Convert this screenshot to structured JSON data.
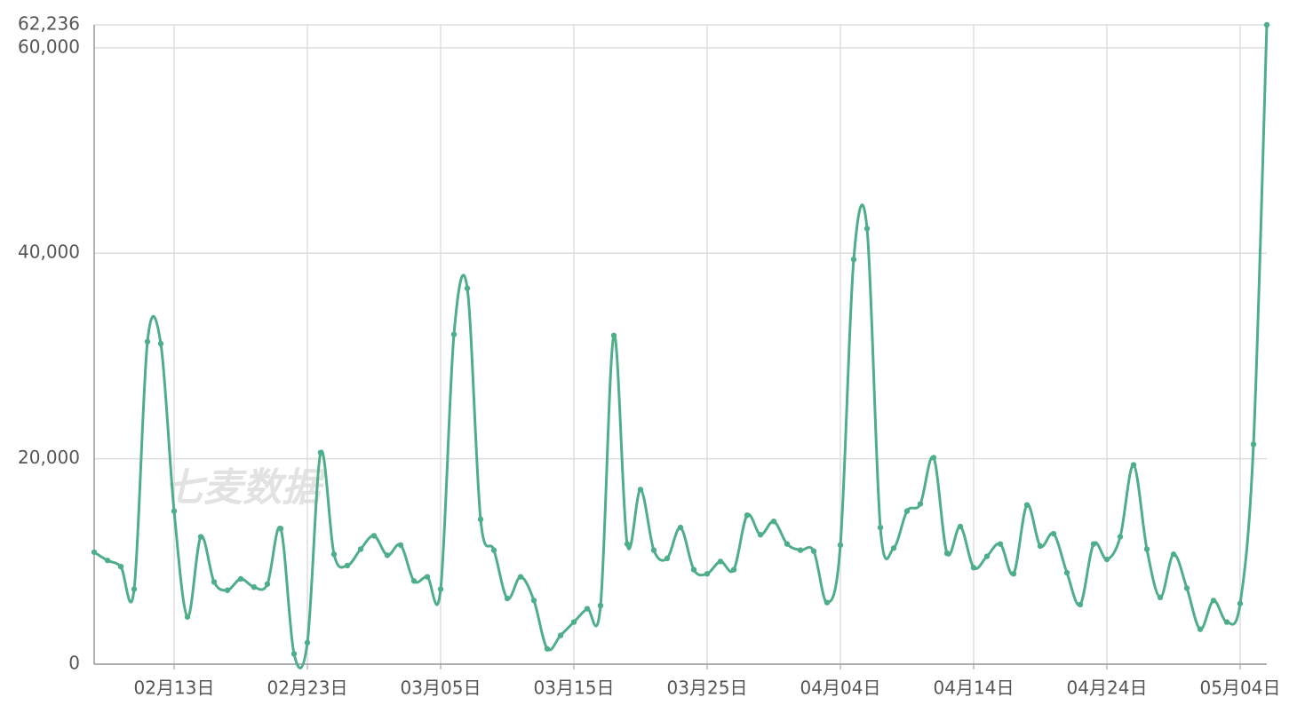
{
  "chart_data": {
    "type": "line",
    "watermark": "七麦数据",
    "categories": [
      null,
      null,
      null,
      null,
      null,
      null,
      "02月13日",
      null,
      null,
      null,
      null,
      null,
      null,
      null,
      null,
      null,
      "02月23日",
      null,
      null,
      null,
      null,
      null,
      null,
      null,
      null,
      null,
      "03月05日",
      null,
      null,
      null,
      null,
      null,
      null,
      null,
      null,
      null,
      "03月15日",
      null,
      null,
      null,
      null,
      null,
      null,
      null,
      null,
      null,
      "03月25日",
      null,
      null,
      null,
      null,
      null,
      null,
      null,
      null,
      null,
      "04月04日",
      null,
      null,
      null,
      null,
      null,
      null,
      null,
      null,
      null,
      "04月14日",
      null,
      null,
      null,
      null,
      null,
      null,
      null,
      null,
      null,
      "04月24日",
      null,
      null,
      null,
      null,
      null,
      null,
      null,
      null,
      null,
      "05月04日",
      null,
      null
    ],
    "values": [
      10900,
      10100,
      9500,
      7300,
      31400,
      31200,
      14900,
      4600,
      12400,
      8000,
      7200,
      8300,
      7500,
      7800,
      13200,
      1000,
      2100,
      20600,
      10700,
      9600,
      11200,
      12500,
      10600,
      11600,
      8100,
      8500,
      7300,
      32100,
      36600,
      14100,
      11100,
      6400,
      8500,
      6200,
      1500,
      2800,
      4100,
      5400,
      5700,
      32000,
      11700,
      17000,
      11100,
      10300,
      13300,
      9200,
      8800,
      10000,
      9200,
      14500,
      12600,
      13900,
      11700,
      11100,
      11000,
      6000,
      11600,
      39400,
      42400,
      13300,
      11300,
      14900,
      15600,
      20100,
      10800,
      13400,
      9400,
      10500,
      11700,
      8800,
      15500,
      11500,
      12700,
      8900,
      5800,
      11700,
      10200,
      12400,
      19400,
      11200,
      6500,
      10700,
      7400,
      3400,
      6200,
      4100,
      5900,
      21400,
      62236
    ],
    "color": "#4fae8a",
    "ylim": [
      0,
      62236
    ],
    "yticks": [
      0,
      {
        "value": 20000,
        "label": "20,000"
      },
      {
        "value": 40000,
        "label": "40,000"
      },
      {
        "value": 60000,
        "label": "60,000"
      },
      {
        "value": 62236,
        "label": "62,236"
      }
    ],
    "grid": true
  }
}
